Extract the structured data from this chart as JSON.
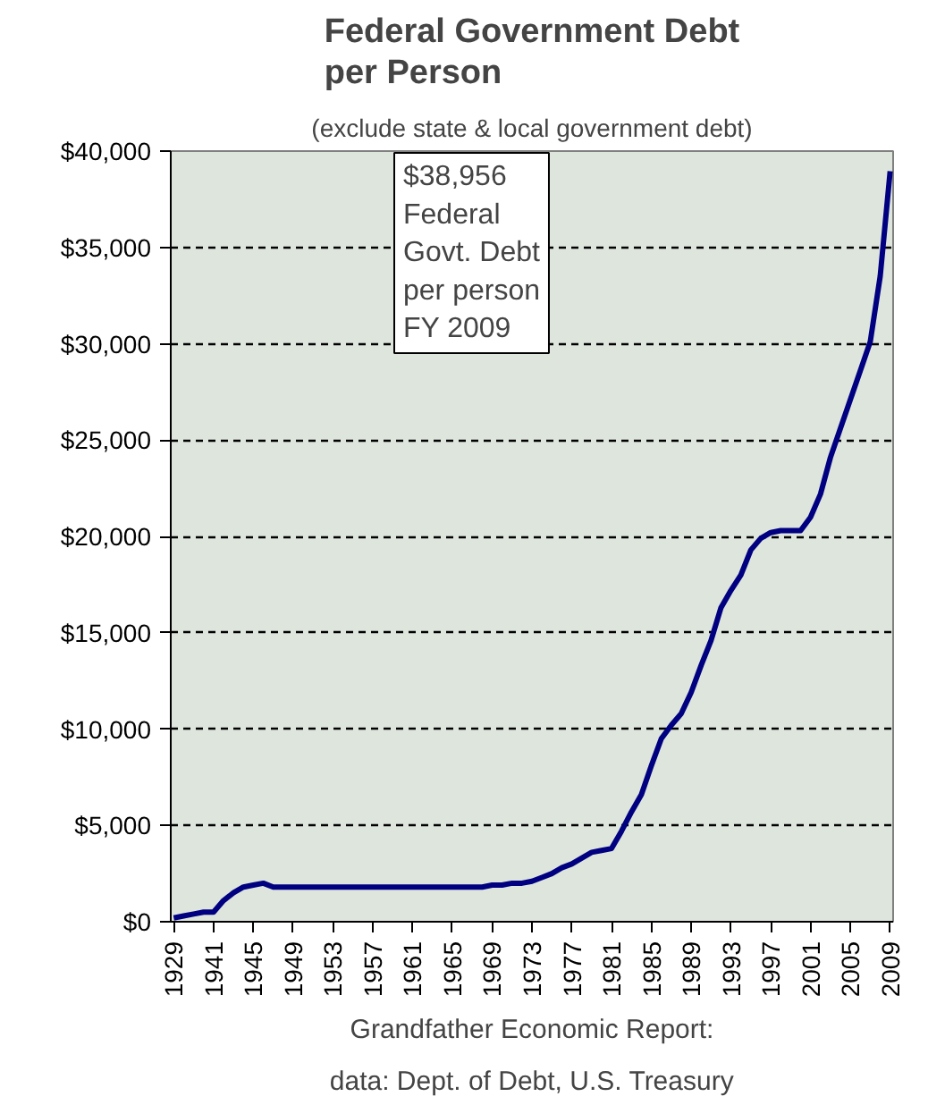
{
  "chart_data": {
    "type": "line",
    "title": "Federal Government Debt\nper Person",
    "subtitle": "(exclude state & local government debt)",
    "categories": [
      "1929",
      null,
      null,
      null,
      "1941",
      null,
      null,
      null,
      "1945",
      null,
      null,
      null,
      "1949",
      null,
      null,
      null,
      "1953",
      null,
      null,
      null,
      "1957",
      null,
      null,
      null,
      "1961",
      null,
      null,
      null,
      "1965",
      null,
      null,
      null,
      "1969",
      null,
      null,
      null,
      "1973",
      null,
      null,
      null,
      "1977",
      null,
      null,
      null,
      "1981",
      null,
      null,
      null,
      "1985",
      null,
      null,
      null,
      "1989",
      null,
      null,
      null,
      "1993",
      null,
      null,
      null,
      "1997",
      null,
      null,
      null,
      "2001",
      null,
      null,
      null,
      "2005",
      null,
      null,
      null,
      "2009"
    ],
    "series": [
      {
        "color": "#000080",
        "values": [
          200,
          300,
          400,
          500,
          500,
          1100,
          1500,
          1800,
          1900,
          2000,
          1800,
          1800,
          1800,
          1800,
          1800,
          1800,
          1800,
          1800,
          1800,
          1800,
          1800,
          1800,
          1800,
          1800,
          1800,
          1800,
          1800,
          1800,
          1800,
          1800,
          1800,
          1800,
          1900,
          1900,
          2000,
          2000,
          2100,
          2300,
          2500,
          2800,
          3000,
          3300,
          3600,
          3700,
          3800,
          4700,
          5700,
          6600,
          8100,
          9500,
          10200,
          10800,
          11900,
          13300,
          14600,
          16300,
          17200,
          18000,
          19300,
          19900,
          20200,
          20300,
          20300,
          20300,
          21000,
          22200,
          24100,
          25600,
          27100,
          28600,
          30100,
          33500,
          38956
        ]
      }
    ],
    "ylim": [
      0,
      40000
    ],
    "yticks": [
      {
        "value": 0,
        "label": "$0"
      },
      {
        "value": 5000,
        "label": "$5,000"
      },
      {
        "value": 10000,
        "label": "$10,000"
      },
      {
        "value": 15000,
        "label": "$15,000"
      },
      {
        "value": 20000,
        "label": "$20,000"
      },
      {
        "value": 25000,
        "label": "$25,000"
      },
      {
        "value": 30000,
        "label": "$30,000"
      },
      {
        "value": 35000,
        "label": "$35,000"
      },
      {
        "value": 40000,
        "label": "$40,000"
      }
    ],
    "grid": "y",
    "marker": "none",
    "line_style": "solid",
    "annotations": [
      "$38,956\nFederal\nGovt. Debt\nper person\nFY 2009",
      "Grandfather Economic Report:",
      "data: Dept. of Debt, U.S. Treasury"
    ]
  }
}
